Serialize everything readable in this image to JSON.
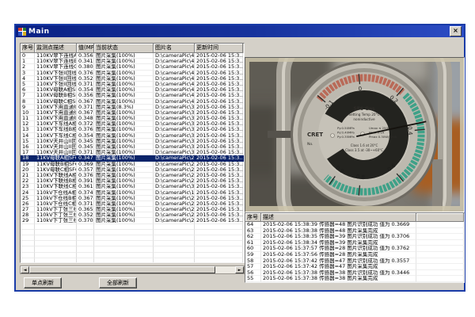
{
  "window": {
    "title": "Main"
  },
  "buttons": {
    "single_refresh": "单点刷新",
    "all_refresh": "全部刷新"
  },
  "left_table": {
    "headers": [
      "序号",
      "监测点描述",
      "值(MPa)",
      "当前状态",
      "图片名",
      "更新时间"
    ],
    "selected_row": 18,
    "rows": [
      {
        "id": "0",
        "desc": "110KV翠下连线A...",
        "val": "0.356",
        "status": "图片采集(100%)",
        "pic": "D:\\cameraPic\\40\\...",
        "time": "2015-02-06 15:3..."
      },
      {
        "id": "1",
        "desc": "110KV翠下连线B...",
        "val": "0.341",
        "status": "图片采集(100%)",
        "pic": "D:\\cameraPic\\41\\...",
        "time": "2015-02-06 15:3..."
      },
      {
        "id": "2",
        "desc": "110KV翠下连线C...",
        "val": "0.380",
        "status": "图片采集(100%)",
        "pic": "D:\\cameraPic\\42\\...",
        "time": "2015-02-06 15:3..."
      },
      {
        "id": "3",
        "desc": "110KV下张II回线A...",
        "val": "0.376",
        "status": "图片采集(100%)",
        "pic": "D:\\cameraPic\\43\\...",
        "time": "2015-02-06 15:3..."
      },
      {
        "id": "4",
        "desc": "110KV下张II回线B...",
        "val": "0.352",
        "status": "图片采集(100%)",
        "pic": "D:\\cameraPic\\44\\...",
        "time": "2015-02-06 15:3..."
      },
      {
        "id": "5",
        "desc": "110KV下张II回线C...",
        "val": "0.371",
        "status": "图片采集(100%)",
        "pic": "D:\\cameraPic\\45\\...",
        "time": "2015-02-06 15:3..."
      },
      {
        "id": "6",
        "desc": "110KV母联A相SF...",
        "val": "0.354",
        "status": "图片采集(100%)",
        "pic": "D:\\cameraPic\\46\\...",
        "time": "2015-02-06 15:3..."
      },
      {
        "id": "7",
        "desc": "110KV母联B相SF...",
        "val": "0.356",
        "status": "图片采集(100%)",
        "pic": "D:\\cameraPic\\47\\...",
        "time": "2015-02-06 15:3..."
      },
      {
        "id": "8",
        "desc": "110KV母联C相SF...",
        "val": "0.367",
        "status": "图片采集(100%)",
        "pic": "D:\\cameraPic\\48\\...",
        "time": "2015-02-06 15:3..."
      },
      {
        "id": "9",
        "desc": "110KV下甪直通线...",
        "val": "0.371",
        "status": "图片采集(8.3%)",
        "pic": "D:\\cameraPic\\31\\...",
        "time": "2015-02-06 15:3..."
      },
      {
        "id": "10",
        "desc": "110KV下甪直通线...",
        "val": "0.367",
        "status": "图片采集(100%)",
        "pic": "D:\\cameraPic\\32\\...",
        "time": "2015-02-06 15:3..."
      },
      {
        "id": "11",
        "desc": "110KV下甪直通线...",
        "val": "0.348",
        "status": "图片采集(100%)",
        "pic": "D:\\cameraPic\\33\\...",
        "time": "2015-02-06 15:3..."
      },
      {
        "id": "12",
        "desc": "110KV下车线A相...",
        "val": "0.372",
        "status": "图片采集(100%)",
        "pic": "D:\\cameraPic\\34\\...",
        "time": "2015-02-06 15:3..."
      },
      {
        "id": "13",
        "desc": "110KV下车线B相...",
        "val": "0.376",
        "status": "图片采集(100%)",
        "pic": "D:\\cameraPic\\35\\...",
        "time": "2015-02-06 15:3..."
      },
      {
        "id": "14",
        "desc": "110KV下车线C相...",
        "val": "0.354",
        "status": "图片采集(100%)",
        "pic": "D:\\cameraPic\\36\\...",
        "time": "2015-02-06 15:3..."
      },
      {
        "id": "15",
        "desc": "110KV天井山II回A...",
        "val": "0.345",
        "status": "图片采集(100%)",
        "pic": "D:\\cameraPic\\37\\...",
        "time": "2015-02-06 15:3..."
      },
      {
        "id": "16",
        "desc": "110KV天井山II回B...",
        "val": "0.345",
        "status": "图片采集(100%)",
        "pic": "D:\\cameraPic\\38\\...",
        "time": "2015-02-06 15:3..."
      },
      {
        "id": "17",
        "desc": "110KV天井山II回C...",
        "val": "0.371",
        "status": "图片采集(100%)",
        "pic": "D:\\cameraPic\\39\\...",
        "time": "2015-02-06 15:3..."
      },
      {
        "id": "18",
        "desc": "11KV母联A相SF6...",
        "val": "0.347",
        "status": "图片采集(100%)",
        "pic": "D:\\cameraPic\\25\\...",
        "time": "2015-02-06 15:3..."
      },
      {
        "id": "19",
        "desc": "11KV母联B相SF6...",
        "val": "0.369",
        "status": "图片采集(100%)",
        "pic": "D:\\cameraPic\\26\\...",
        "time": "2015-02-06 15:3..."
      },
      {
        "id": "20",
        "desc": "11KV母联C相SF6...",
        "val": "0.357",
        "status": "图片采集(100%)",
        "pic": "D:\\cameraPic\\27\\...",
        "time": "2015-02-06 15:3..."
      },
      {
        "id": "21",
        "desc": "110KV下联线A相...",
        "val": "0.376",
        "status": "图片采集(100%)",
        "pic": "D:\\cameraPic\\28\\...",
        "time": "2015-02-06 15:3..."
      },
      {
        "id": "22",
        "desc": "110KV下联线B相...",
        "val": "0.391",
        "status": "图片采集(100%)",
        "pic": "D:\\cameraPic\\29\\...",
        "time": "2015-02-06 15:3..."
      },
      {
        "id": "23",
        "desc": "110KV下联线C相...",
        "val": "0.361",
        "status": "图片采集(100%)",
        "pic": "D:\\cameraPic\\30\\...",
        "time": "2015-02-06 15:3..."
      },
      {
        "id": "24",
        "desc": "110kV下仓线A相S...",
        "val": "0.374",
        "status": "图片采集(100%)",
        "pic": "D:\\cameraPic\\19\\...",
        "time": "2015-02-06 15:3..."
      },
      {
        "id": "25",
        "desc": "110kV下仓线B相S...",
        "val": "0.367",
        "status": "图片采集(100%)",
        "pic": "D:\\cameraPic\\20\\...",
        "time": "2015-02-06 15:3..."
      },
      {
        "id": "26",
        "desc": "110kV下仓线C相S...",
        "val": "0.371",
        "status": "图片采集(100%)",
        "pic": "D:\\cameraPic\\21\\...",
        "time": "2015-02-06 15:3..."
      },
      {
        "id": "27",
        "desc": "110kV下丁张三线...",
        "val": "0.365",
        "status": "图片采集(100%)",
        "pic": "D:\\cameraPic\\22\\...",
        "time": "2015-02-06 15:3..."
      },
      {
        "id": "28",
        "desc": "110kV下丁张三线...",
        "val": "0.352",
        "status": "图片采集(100%)",
        "pic": "D:\\cameraPic\\23\\...",
        "time": "2015-02-06 15:3..."
      },
      {
        "id": "29",
        "desc": "110kV下丁张三线...",
        "val": "0.370",
        "status": "图片采集(100%)",
        "pic": "D:\\cameraPic\\24\\...",
        "time": "2015-02-06 15:3..."
      }
    ]
  },
  "log_table": {
    "headers": [
      "序号",
      "描述"
    ],
    "rows": [
      {
        "id": "64",
        "desc": "2015-02-06 15:38:39 传感器=48 图片识别成功 值为 0.3669"
      },
      {
        "id": "63",
        "desc": "2015-02-06 15:38:38 传感器=48 图片采集完成"
      },
      {
        "id": "62",
        "desc": "2015-02-06 15:38:35 传感器=39 图片识别成功 值为 0.3706"
      },
      {
        "id": "61",
        "desc": "2015-02-06 15:38:34 传感器=39 图片采集完成"
      },
      {
        "id": "60",
        "desc": "2015-02-06 15:37:57 传感器=28 图片识别成功 值为 0.3762"
      },
      {
        "id": "59",
        "desc": "2015-02-06 15:37:56 传感器=28 图片采集完成"
      },
      {
        "id": "58",
        "desc": "2015-02-06 15:37:42 传感器=47 图片识别成功 值为 0.3557"
      },
      {
        "id": "57",
        "desc": "2015-02-06 15:37:42 传感器=47 图片采集完成"
      },
      {
        "id": "56",
        "desc": "2015-02-06 15:37:38 传感器=38 图片识别成功 值为 0.3446"
      },
      {
        "id": "55",
        "desc": "2015-02-06 15:37:38 传感器=38 图片采集完成"
      }
    ]
  },
  "gauge": {
    "brand": "CRET",
    "serial": "No.",
    "title_lines": [
      "SF6  Gas",
      "Setting Temp 20°C",
      "noninductive"
    ],
    "spec_left": [
      "Py:0.50MPa",
      "Py:0.40MPa",
      "Py:0.35MPa"
    ],
    "spec_right": [
      "Umax ≤ 250V",
      "Imax  0.1A",
      "Pmax 0.30W/50VA"
    ],
    "class_lines": [
      "Class 1.6 at 20°C",
      "Class 3.5 at -30~+60°C"
    ],
    "scale_labels": [
      {
        "v": "-0.1",
        "a": -50
      },
      {
        "v": "0",
        "a": -5
      },
      {
        "v": "0.2",
        "a": 40
      },
      {
        "v": "0.4",
        "a": 85
      },
      {
        "v": "0.6",
        "a": 140
      },
      {
        "v": "0.8",
        "a": 185
      },
      {
        "v": "0.9",
        "a": 215
      }
    ],
    "red_band": {
      "from": -52,
      "to": 42,
      "color": "#b96a58"
    },
    "green_band": {
      "from": 46,
      "to": 222,
      "color": "#3fa188"
    },
    "needle_angle": 78,
    "needle_value": "0.37"
  }
}
